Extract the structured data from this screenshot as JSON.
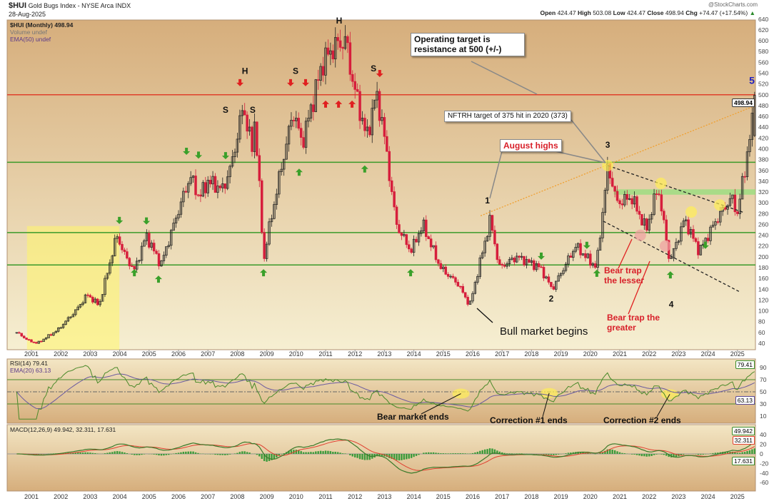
{
  "header": {
    "symbol": "$HUI",
    "name": "Gold Bugs Index - NYSE Arca INDX",
    "date": "28-Aug-2025",
    "copyright": "@StockCharts.com",
    "ohlc": {
      "open_label": "Open",
      "open": "424.47",
      "high_label": "High",
      "high": "503.08",
      "low_label": "Low",
      "low": "424.47",
      "close_label": "Close",
      "close": "498.94",
      "chg_label": "Chg",
      "chg": "+74.47 (+17.54%)"
    }
  },
  "legend": {
    "price": "$HUI (Monthly) 498.94",
    "volume": "Volume undef",
    "ema": "EMA(50) undef",
    "rsi": "RSI(14) 79.41",
    "rsi_ema": "EMA(20) 63.13",
    "macd": "MACD(12,26,9) 49.942, 32.311, 17.631"
  },
  "tags": {
    "price": "498.94",
    "rsi": "79.41",
    "rsi_ema": "63.13",
    "macd": "49.942",
    "signal": "32.311",
    "hist": "17.631"
  },
  "annotations": {
    "operating_target": "Operating target is resistance at 500 (+/-)",
    "nftrh_target": "NFTRH target of 375 hit in 2020 (373)",
    "august_highs": "August highs",
    "bull_market": "Bull market begins",
    "bear_trap_lesser": "Bear trap the lesser",
    "bear_trap_greater": "Bear trap the greater",
    "bear_market_ends": "Bear market ends",
    "correction1": "Correction #1 ends",
    "correction2": "Correction #2 ends"
  },
  "colors": {
    "up": "#222222",
    "down": "#d61f3c",
    "resistance": "#e0402a",
    "support": "#3a9a2a",
    "rsi": "#4a8a2a",
    "rsi_ema": "#6a5aa0",
    "macd": "#3a7a2a",
    "signal": "#e04030",
    "hist": "#3a9a3a",
    "trend": "#f0a030"
  },
  "chart_data": {
    "type": "candlestick",
    "title": "$HUI Gold Bugs Index (Monthly)",
    "x_ticks": [
      "2001",
      "2002",
      "2003",
      "2004",
      "2005",
      "2006",
      "2007",
      "2008",
      "2009",
      "2010",
      "2011",
      "2012",
      "2013",
      "2014",
      "2015",
      "2016",
      "2017",
      "2018",
      "2019",
      "2020",
      "2021",
      "2022",
      "2023",
      "2024",
      "2025"
    ],
    "price_axis": {
      "range": [
        40,
        640
      ],
      "ticks": [
        40,
        60,
        80,
        100,
        120,
        140,
        160,
        180,
        200,
        220,
        240,
        260,
        280,
        300,
        320,
        340,
        360,
        380,
        400,
        420,
        440,
        460,
        480,
        500,
        520,
        540,
        560,
        580,
        600,
        620,
        640
      ]
    },
    "rsi_axis": {
      "ticks": [
        10,
        30,
        50,
        70,
        90
      ]
    },
    "macd_axis": {
      "ticks": [
        -60,
        -40,
        -20,
        0,
        20,
        40
      ]
    },
    "close_path": [
      [
        2000.5,
        60
      ],
      [
        2000.9,
        45
      ],
      [
        2001.2,
        40
      ],
      [
        2001.9,
        65
      ],
      [
        2002.5,
        100
      ],
      [
        2002.9,
        130
      ],
      [
        2003.3,
        110
      ],
      [
        2003.9,
        240
      ],
      [
        2004.2,
        200
      ],
      [
        2004.5,
        175
      ],
      [
        2004.9,
        240
      ],
      [
        2005.4,
        185
      ],
      [
        2005.9,
        270
      ],
      [
        2006.4,
        350
      ],
      [
        2006.7,
        310
      ],
      [
        2007.0,
        340
      ],
      [
        2007.5,
        325
      ],
      [
        2007.8,
        370
      ],
      [
        2008.2,
        480
      ],
      [
        2008.5,
        400
      ],
      [
        2008.6,
        460
      ],
      [
        2008.9,
        190
      ],
      [
        2009.0,
        230
      ],
      [
        2009.4,
        340
      ],
      [
        2009.9,
        470
      ],
      [
        2010.2,
        410
      ],
      [
        2010.9,
        560
      ],
      [
        2011.3,
        590
      ],
      [
        2011.7,
        600
      ],
      [
        2011.9,
        530
      ],
      [
        2012.4,
        420
      ],
      [
        2012.7,
        500
      ],
      [
        2012.9,
        460
      ],
      [
        2013.4,
        260
      ],
      [
        2013.9,
        210
      ],
      [
        2014.3,
        260
      ],
      [
        2014.9,
        180
      ],
      [
        2015.5,
        150
      ],
      [
        2015.9,
        110
      ],
      [
        2016.6,
        270
      ],
      [
        2016.9,
        180
      ],
      [
        2017.5,
        200
      ],
      [
        2018.3,
        180
      ],
      [
        2018.7,
        140
      ],
      [
        2019.5,
        220
      ],
      [
        2020.2,
        180
      ],
      [
        2020.6,
        370
      ],
      [
        2020.9,
        300
      ],
      [
        2021.4,
        310
      ],
      [
        2021.9,
        250
      ],
      [
        2022.3,
        330
      ],
      [
        2022.7,
        190
      ],
      [
        2023.2,
        270
      ],
      [
        2023.7,
        210
      ],
      [
        2024.3,
        270
      ],
      [
        2024.8,
        310
      ],
      [
        2025.0,
        280
      ],
      [
        2025.3,
        380
      ],
      [
        2025.65,
        499
      ]
    ],
    "last": {
      "open": 424.47,
      "high": 503.08,
      "low": 424.47,
      "close": 498.94
    },
    "horizontal_lines": [
      {
        "value": 500,
        "color": "red"
      },
      {
        "value": 375,
        "color": "green"
      },
      {
        "value": 245,
        "color": "green"
      },
      {
        "value": 185,
        "color": "green"
      }
    ],
    "support_band": [
      315,
      325
    ],
    "trendlines": [
      {
        "style": "orange-dotted",
        "from": [
          2016.27,
          276
        ],
        "to": [
          2025.61,
          480
        ]
      },
      {
        "style": "black-dashed",
        "from": [
          2020.59,
          369
        ],
        "to": [
          2025.22,
          282
        ]
      },
      {
        "style": "black-dashed",
        "from": [
          2020.44,
          266
        ],
        "to": [
          2025.05,
          136
        ]
      }
    ],
    "highlight_zone": {
      "years": [
        2000.85,
        2003.99
      ],
      "prices": [
        40,
        257
      ]
    },
    "pattern_labels": [
      {
        "text": "S",
        "at": [
          2007.6,
          467
        ]
      },
      {
        "text": "H",
        "at": [
          2008.26,
          539
        ]
      },
      {
        "text": "S",
        "at": [
          2008.52,
          467
        ]
      },
      {
        "text": "S",
        "at": [
          2009.98,
          539
        ]
      },
      {
        "text": "H",
        "at": [
          2011.46,
          632
        ]
      },
      {
        "text": "S",
        "at": [
          2012.63,
          543
        ]
      },
      {
        "text": "1",
        "at": [
          2016.5,
          299
        ]
      },
      {
        "text": "2",
        "at": [
          2018.67,
          117
        ]
      },
      {
        "text": "3",
        "at": [
          2020.59,
          402
        ]
      },
      {
        "text": "4",
        "at": [
          2022.75,
          107
        ]
      },
      {
        "text": "5",
        "at": [
          2025.49,
          520
        ]
      }
    ],
    "green_down_arrows": [
      [
        2003.99,
        266
      ],
      [
        2004.91,
        265
      ],
      [
        2006.27,
        394
      ],
      [
        2006.68,
        387
      ],
      [
        2007.6,
        386
      ],
      [
        2018.33,
        200
      ],
      [
        2019.88,
        220
      ],
      [
        2023.91,
        220
      ]
    ],
    "green_up_arrows": [
      [
        2004.5,
        172
      ],
      [
        2005.32,
        160
      ],
      [
        2008.89,
        172
      ],
      [
        2010.1,
        358
      ],
      [
        2012.33,
        364
      ],
      [
        2013.89,
        172
      ],
      [
        2020.22,
        171
      ],
      [
        2022.72,
        168
      ]
    ],
    "red_down_arrows": [
      [
        2008.09,
        521
      ],
      [
        2009.81,
        521
      ],
      [
        2010.32,
        521
      ],
      [
        2012.84,
        538
      ]
    ],
    "red_up_arrows": [
      [
        2011.0,
        484
      ],
      [
        2011.44,
        484
      ],
      [
        2011.9,
        484
      ]
    ],
    "yellow_circles": [
      [
        2020.59,
        369
      ],
      [
        2022.4,
        336
      ],
      [
        2023.43,
        283
      ],
      [
        2024.4,
        296
      ]
    ],
    "pink_circles": [
      [
        2021.7,
        240
      ],
      [
        2022.55,
        220
      ]
    ]
  }
}
